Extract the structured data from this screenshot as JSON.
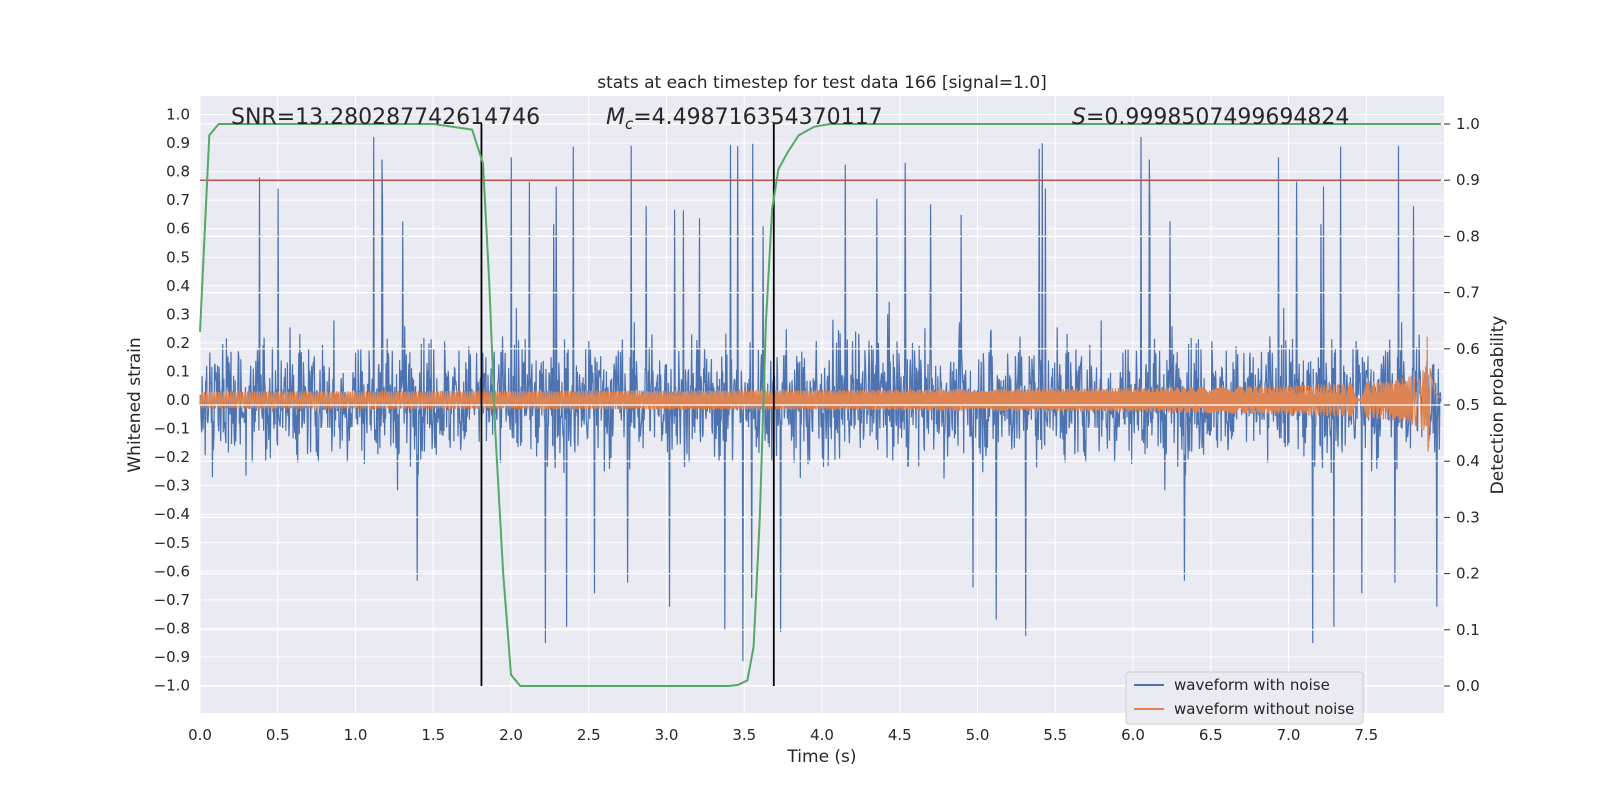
{
  "chart_data": {
    "type": "line",
    "title": "stats at each timestep for test data 166 [signal=1.0]",
    "xlabel": "Time (s)",
    "ylabel": "Whitened strain",
    "y2label": "Detection probability",
    "xlim": [
      0.0,
      8.0
    ],
    "ylim": [
      -1.1,
      1.05
    ],
    "y2lim": [
      -0.05,
      1.0
    ],
    "x_ticks": [
      0.0,
      0.5,
      1.0,
      1.5,
      2.0,
      2.5,
      3.0,
      3.5,
      4.0,
      4.5,
      5.0,
      5.5,
      6.0,
      6.5,
      7.0,
      7.5
    ],
    "x_tick_labels": [
      "0.0",
      "0.5",
      "1.0",
      "1.5",
      "2.0",
      "2.5",
      "3.0",
      "3.5",
      "4.0",
      "4.5",
      "5.0",
      "5.5",
      "6.0",
      "6.5",
      "7.0",
      "7.5"
    ],
    "y_ticks": [
      1.0,
      0.9,
      0.8,
      0.7,
      0.6,
      0.5,
      0.4,
      0.3,
      0.2,
      0.1,
      0.0,
      -0.1,
      -0.2,
      -0.3,
      -0.4,
      -0.5,
      -0.6,
      -0.7,
      -0.8,
      -0.9,
      -1.0
    ],
    "y_tick_labels": [
      "1.0",
      "0.9",
      "0.8",
      "0.7",
      "0.6",
      "0.5",
      "0.4",
      "0.3",
      "0.2",
      "0.1",
      "0.0",
      "−0.1",
      "−0.2",
      "−0.3",
      "−0.4",
      "−0.5",
      "−0.6",
      "−0.7",
      "−0.8",
      "−0.9",
      "−1.0"
    ],
    "y2_ticks": [
      1.0,
      0.9,
      0.8,
      0.7,
      0.6,
      0.5,
      0.4,
      0.3,
      0.2,
      0.1,
      0.0
    ],
    "y2_tick_labels": [
      "1.0",
      "0.9",
      "0.8",
      "0.7",
      "0.6",
      "0.5",
      "0.4",
      "0.3",
      "0.2",
      "0.1",
      "0.0"
    ],
    "grid": true,
    "legend_position": "lower-right",
    "annotations": {
      "snr": "SNR=13.280287742614746",
      "mc_symbol": "M",
      "mc_subscript": "c",
      "mc_value": "=4.498716354370117",
      "s_symbol": "S",
      "s_value": "=0.9998507499694824"
    },
    "threshold_prob": 0.9,
    "vertical_markers": [
      1.81,
      3.69
    ],
    "series": [
      {
        "name": "waveform with noise",
        "color": "#4c72b0",
        "t_end": 7.98,
        "typical_amp": 0.33,
        "peak_amp": 1.0
      },
      {
        "name": "waveform without noise",
        "color": "#dd8452",
        "t_end": 7.98,
        "initial_amp": 0.03,
        "peak_amp": 0.38,
        "merger_time": 7.88
      },
      {
        "name": "detection probability",
        "color": "#55a868",
        "t": [
          0.0,
          0.06,
          0.12,
          0.2,
          0.5,
          1.0,
          1.5,
          1.75,
          1.82,
          1.86,
          1.9,
          1.95,
          2.0,
          2.06,
          2.12,
          2.5,
          3.0,
          3.3,
          3.4,
          3.46,
          3.52,
          3.56,
          3.6,
          3.64,
          3.68,
          3.72,
          3.78,
          3.85,
          3.95,
          4.05,
          4.2,
          5.0,
          6.0,
          7.0,
          7.98
        ],
        "p": [
          0.63,
          0.98,
          1.0,
          1.0,
          1.0,
          1.0,
          1.0,
          0.99,
          0.93,
          0.72,
          0.45,
          0.2,
          0.02,
          0.0,
          0.0,
          0.0,
          0.0,
          0.0,
          0.0,
          0.002,
          0.01,
          0.07,
          0.3,
          0.65,
          0.85,
          0.92,
          0.95,
          0.98,
          0.995,
          1.0,
          1.0,
          1.0,
          1.0,
          1.0,
          1.0
        ]
      },
      {
        "name": "detection threshold",
        "color": "#c44e52",
        "value": 0.9
      }
    ],
    "marker_color": "#000000",
    "bg_color": "#eaeaf2",
    "grid_color": "#ffffff"
  }
}
